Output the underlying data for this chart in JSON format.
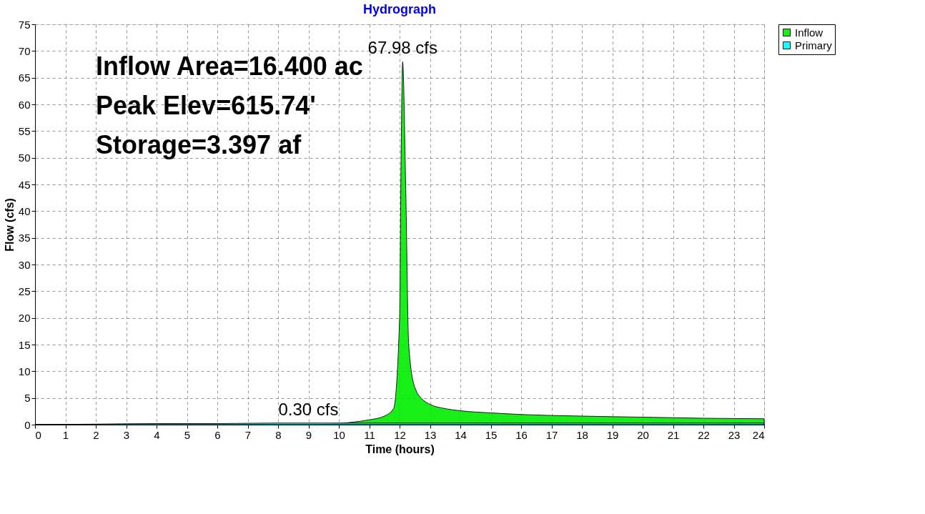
{
  "chart_data": {
    "type": "area",
    "title": "Hydrograph",
    "xlabel": "Time  (hours)",
    "ylabel": "Flow  (cfs)",
    "series": [
      {
        "name": "Inflow",
        "color": "#00ee00",
        "x": [
          0,
          9,
          10,
          10.5,
          11,
          11.5,
          11.8,
          12,
          12.05,
          12.1,
          12.2,
          12.3,
          12.5,
          12.8,
          13,
          13.5,
          14,
          15,
          16,
          18,
          20,
          22,
          24
        ],
        "values": [
          0,
          0,
          0.2,
          0.5,
          0.9,
          1.6,
          3,
          20,
          50,
          67.98,
          45,
          15,
          7,
          4.5,
          3.8,
          3,
          2.6,
          2.2,
          1.9,
          1.6,
          1.4,
          1.2,
          1.1
        ]
      },
      {
        "name": "Primary",
        "color": "#00ffff",
        "x": [
          0,
          2,
          4,
          6,
          8,
          10,
          12,
          13,
          14,
          16,
          18,
          20,
          22,
          24
        ],
        "values": [
          0,
          0.1,
          0.2,
          0.2,
          0.3,
          0.3,
          0.3,
          0.3,
          0.3,
          0.3,
          0.3,
          0.3,
          0.3,
          0.3
        ]
      }
    ],
    "xlim": [
      0,
      24
    ],
    "xticks": [
      0,
      1,
      2,
      3,
      4,
      5,
      6,
      7,
      8,
      9,
      10,
      11,
      12,
      13,
      14,
      15,
      16,
      17,
      18,
      19,
      20,
      21,
      22,
      23,
      24
    ],
    "ylim": [
      0,
      75
    ],
    "yticks": [
      0,
      5,
      10,
      15,
      20,
      25,
      30,
      35,
      40,
      45,
      50,
      55,
      60,
      65,
      70,
      75
    ],
    "grid": true,
    "legend": "top right",
    "annotations": [
      "Inflow Area=16.400 ac",
      "Peak Elev=615.74'",
      "Storage=3.397 af",
      {
        "text": "67.98 cfs",
        "x": 12.1,
        "y": 67.98
      },
      {
        "text": "0.30 cfs",
        "x": 9,
        "y": 0.3
      }
    ]
  }
}
